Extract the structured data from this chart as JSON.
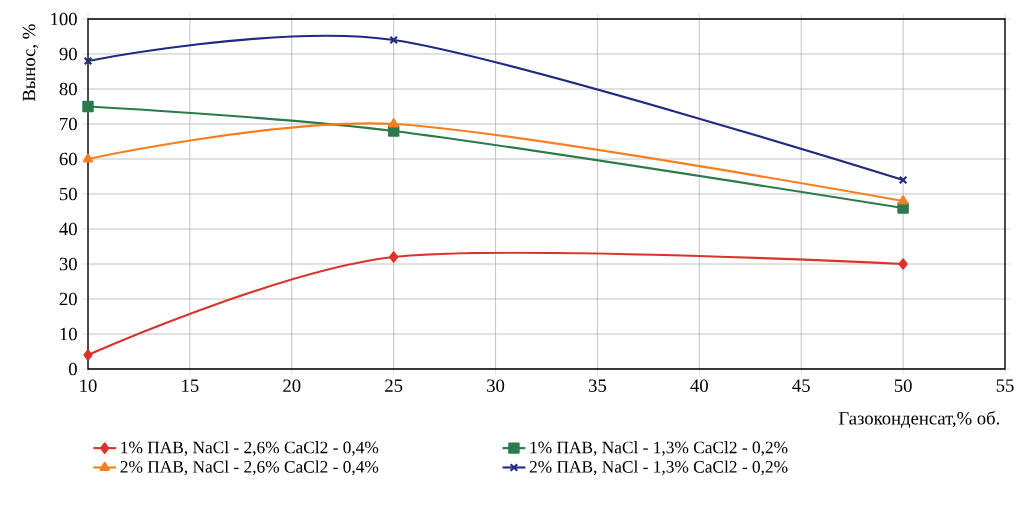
{
  "chart_data": {
    "type": "line",
    "xlabel": "Газоконденсат,% об.",
    "ylabel": "Вынос, %",
    "x": [
      10,
      25,
      50
    ],
    "series": [
      {
        "name": "1% ПАВ, NaCl - 2,6% CaCl2 - 0,4%",
        "color": "#d9342b",
        "marker": "diamond",
        "values": [
          4,
          32,
          30
        ]
      },
      {
        "name": "1% ПАВ, NaCl - 1,3% CaCl2 - 0,2%",
        "color": "#2a7a4b",
        "marker": "square",
        "values": [
          75,
          68,
          46
        ]
      },
      {
        "name": "2% ПАВ, NaCl - 2,6% CaCl2 - 0,4%",
        "color": "#f57f20",
        "marker": "triangle",
        "values": [
          60,
          70,
          48
        ]
      },
      {
        "name": "2% ПАВ, NaCl - 1,3% CaCl2 - 0,2%",
        "color": "#1f2a80",
        "marker": "cross",
        "values": [
          88,
          94,
          54
        ]
      }
    ],
    "xlim": [
      10,
      55
    ],
    "ylim": [
      0,
      100
    ],
    "xticks": [
      10,
      15,
      20,
      25,
      30,
      35,
      40,
      45,
      50,
      55
    ],
    "yticks": [
      0,
      10,
      20,
      30,
      40,
      50,
      60,
      70,
      80,
      90,
      100
    ],
    "grid": true,
    "legend": "bottom",
    "line_style": "solid"
  }
}
